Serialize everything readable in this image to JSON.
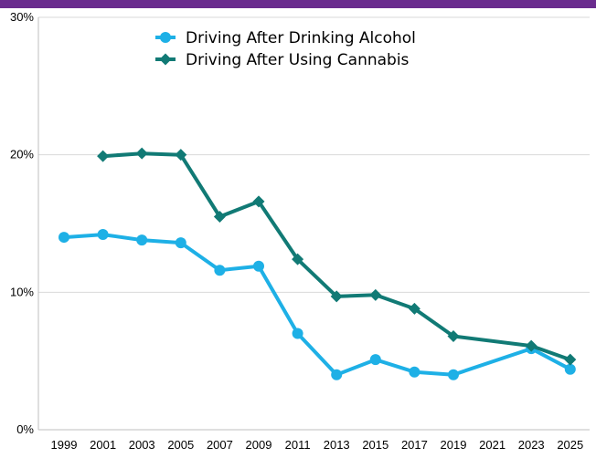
{
  "header_bar": {
    "color": "#6a2c8e"
  },
  "chart_data": {
    "type": "line",
    "title": "",
    "xlabel": "",
    "ylabel": "",
    "categories": [
      "1999",
      "2001",
      "2003",
      "2005",
      "2007",
      "2009",
      "2011",
      "2013",
      "2015",
      "2017",
      "2019",
      "2021",
      "2023",
      "2025"
    ],
    "y_ticks": [
      "0%",
      "10%",
      "20%",
      "30%"
    ],
    "ylim": [
      0,
      30
    ],
    "y_unit": "%",
    "grid": {
      "y": true,
      "x": false
    },
    "legend_position": "top-center",
    "series": [
      {
        "name": "Driving After Drinking Alcohol",
        "color": "#1eb0e6",
        "marker": "circle",
        "values": [
          14.0,
          14.2,
          13.8,
          13.6,
          11.6,
          11.9,
          7.0,
          4.0,
          5.1,
          4.2,
          4.0,
          null,
          5.9,
          4.4
        ]
      },
      {
        "name": "Driving After Using Cannabis",
        "color": "#117a75",
        "marker": "diamond",
        "values": [
          null,
          19.9,
          20.1,
          20.0,
          15.5,
          16.6,
          12.4,
          9.7,
          9.8,
          8.8,
          6.8,
          null,
          6.1,
          5.1
        ]
      }
    ]
  }
}
